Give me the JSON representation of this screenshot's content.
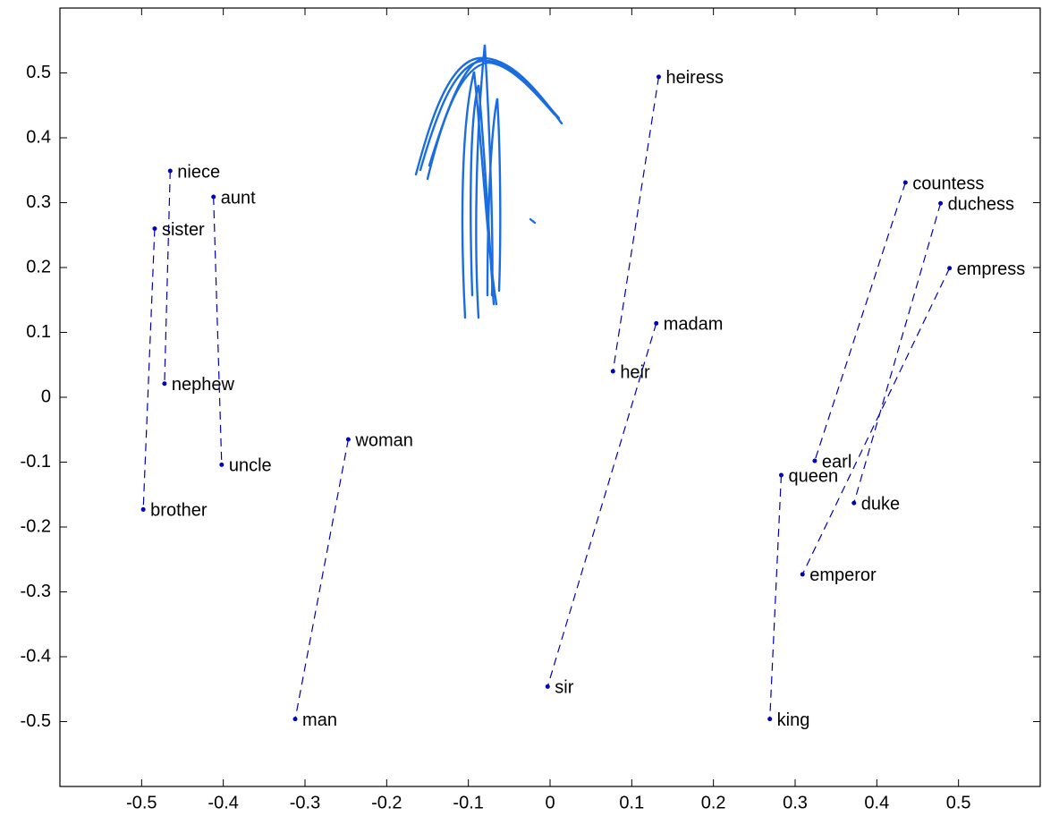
{
  "chart_data": {
    "type": "scatter",
    "xlim": [
      -0.6,
      0.6
    ],
    "ylim": [
      -0.6,
      0.6
    ],
    "xticks": [
      -0.5,
      -0.4,
      -0.3,
      -0.2,
      -0.1,
      0,
      0.1,
      0.2,
      0.3,
      0.4,
      0.5
    ],
    "yticks": [
      -0.5,
      -0.4,
      -0.3,
      -0.2,
      -0.1,
      0,
      0.1,
      0.2,
      0.3,
      0.4,
      0.5
    ],
    "color": "#0000b4",
    "series": [
      {
        "labels": [
          "niece",
          "nephew"
        ],
        "x": [
          -0.465,
          -0.472
        ],
        "y": [
          0.349,
          0.021
        ]
      },
      {
        "labels": [
          "aunt",
          "uncle"
        ],
        "x": [
          -0.412,
          -0.402
        ],
        "y": [
          0.309,
          -0.104
        ]
      },
      {
        "labels": [
          "sister",
          "brother"
        ],
        "x": [
          -0.484,
          -0.498
        ],
        "y": [
          0.26,
          -0.173
        ]
      },
      {
        "labels": [
          "woman",
          "man"
        ],
        "x": [
          -0.247,
          -0.312
        ],
        "y": [
          -0.065,
          -0.496
        ]
      },
      {
        "labels": [
          "heiress",
          "heir"
        ],
        "x": [
          0.133,
          0.077
        ],
        "y": [
          0.494,
          0.04
        ]
      },
      {
        "labels": [
          "madam",
          "sir"
        ],
        "x": [
          0.13,
          -0.003
        ],
        "y": [
          0.114,
          -0.446
        ]
      },
      {
        "labels": [
          "countess",
          "earl"
        ],
        "x": [
          0.435,
          0.324
        ],
        "y": [
          0.331,
          -0.098
        ]
      },
      {
        "labels": [
          "duchess",
          "duke"
        ],
        "x": [
          0.478,
          0.372
        ],
        "y": [
          0.299,
          -0.163
        ]
      },
      {
        "labels": [
          "empress",
          "emperor"
        ],
        "x": [
          0.489,
          0.309
        ],
        "y": [
          0.199,
          -0.273
        ]
      },
      {
        "labels": [
          "queen",
          "king"
        ],
        "x": [
          0.283,
          0.269
        ],
        "y": [
          -0.12,
          -0.496
        ]
      }
    ]
  }
}
